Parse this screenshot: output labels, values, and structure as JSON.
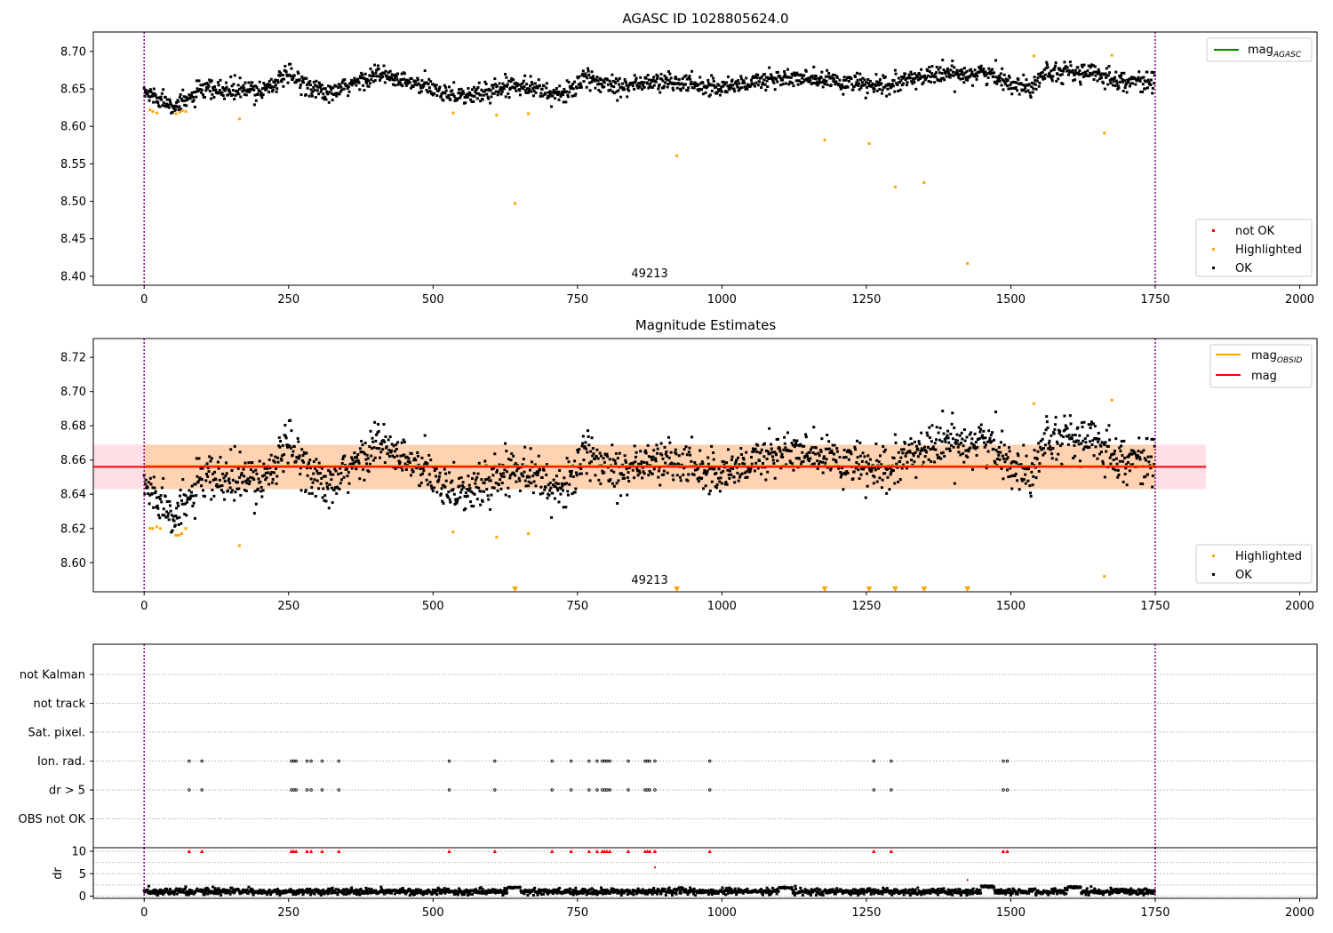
{
  "chart_data": [
    {
      "type": "scatter",
      "title": "AGASC ID 1028805624.0",
      "xlim": [
        -88,
        2030
      ],
      "ylim": [
        8.388,
        8.726
      ],
      "x_ticks": [
        0,
        250,
        500,
        750,
        1000,
        1250,
        1500,
        1750,
        2000
      ],
      "y_ticks": [
        8.4,
        8.45,
        8.5,
        8.55,
        8.6,
        8.65,
        8.7
      ],
      "x_tick_labels": [
        "0",
        "250",
        "500",
        "750",
        "1000",
        "1250",
        "1500",
        "1750",
        "2000"
      ],
      "y_tick_labels": [
        "8.40",
        "8.45",
        "8.50",
        "8.55",
        "8.60",
        "8.65",
        "8.70"
      ],
      "obsid_label": "49213",
      "obsid_x": 875,
      "obs_bounds": [
        0,
        1750
      ],
      "legend_lines": [
        {
          "label": "mag",
          "sub": "AGASC",
          "color": "#008000"
        }
      ],
      "legend_points": [
        {
          "label": "not OK",
          "color": "#ff0000"
        },
        {
          "label": "Highlighted",
          "color": "#ffa500"
        },
        {
          "label": "OK",
          "color": "#000000"
        }
      ],
      "ok_series": {
        "color": "#000000",
        "count": 1750,
        "noise": 0.0065,
        "trend_points": [
          [
            0,
            8.645
          ],
          [
            60,
            8.628
          ],
          [
            100,
            8.648
          ],
          [
            200,
            8.648
          ],
          [
            250,
            8.668
          ],
          [
            320,
            8.642
          ],
          [
            400,
            8.67
          ],
          [
            500,
            8.65
          ],
          [
            560,
            8.64
          ],
          [
            650,
            8.658
          ],
          [
            720,
            8.64
          ],
          [
            760,
            8.662
          ],
          [
            830,
            8.655
          ],
          [
            900,
            8.66
          ],
          [
            1000,
            8.652
          ],
          [
            1100,
            8.665
          ],
          [
            1200,
            8.66
          ],
          [
            1280,
            8.652
          ],
          [
            1350,
            8.668
          ],
          [
            1450,
            8.672
          ],
          [
            1480,
            8.665
          ],
          [
            1530,
            8.65
          ],
          [
            1560,
            8.675
          ],
          [
            1650,
            8.67
          ],
          [
            1700,
            8.66
          ],
          [
            1750,
            8.66
          ]
        ]
      },
      "highlighted": {
        "color": "#ffa500",
        "points": [
          [
            10,
            8.622
          ],
          [
            15,
            8.62
          ],
          [
            22,
            8.618
          ],
          [
            55,
            8.617
          ],
          [
            62,
            8.619
          ],
          [
            66,
            8.621
          ],
          [
            72,
            8.62
          ],
          [
            165,
            8.61
          ],
          [
            535,
            8.618
          ],
          [
            610,
            8.615
          ],
          [
            642,
            8.497
          ],
          [
            665,
            8.617
          ],
          [
            922,
            8.561
          ],
          [
            1178,
            8.582
          ],
          [
            1255,
            8.577
          ],
          [
            1300,
            8.519
          ],
          [
            1350,
            8.525
          ],
          [
            1425,
            8.417
          ],
          [
            1540,
            8.694
          ],
          [
            1662,
            8.591
          ],
          [
            1675,
            8.695
          ]
        ]
      }
    },
    {
      "type": "scatter",
      "title": "Magnitude Estimates",
      "xlim": [
        -88,
        2030
      ],
      "ylim": [
        8.583,
        8.731
      ],
      "x_ticks": [
        0,
        250,
        500,
        750,
        1000,
        1250,
        1500,
        1750,
        2000
      ],
      "y_ticks": [
        8.6,
        8.62,
        8.64,
        8.66,
        8.68,
        8.7,
        8.72
      ],
      "x_tick_labels": [
        "0",
        "250",
        "500",
        "750",
        "1000",
        "1250",
        "1500",
        "1750",
        "2000"
      ],
      "y_tick_labels": [
        "8.60",
        "8.62",
        "8.64",
        "8.66",
        "8.68",
        "8.70",
        "8.72"
      ],
      "obsid_label": "49213",
      "obsid_x": 875,
      "obs_bounds": [
        0,
        1750
      ],
      "mean_mag": 8.656,
      "mag_band": [
        8.643,
        8.669
      ],
      "mag_band_xlim": [
        -88,
        1838
      ],
      "obsid_mean": 8.656,
      "obsid_band_xlim": [
        0,
        1750
      ],
      "legend_lines": [
        {
          "label": "mag",
          "sub": "OBSID",
          "color": "#ffa500"
        },
        {
          "label": "mag",
          "sub": "",
          "color": "#ff0000"
        }
      ],
      "legend_points": [
        {
          "label": "Highlighted",
          "color": "#ffa500"
        },
        {
          "label": "OK",
          "color": "#000000"
        }
      ],
      "ok_series": {
        "color": "#000000",
        "count": 1750,
        "noise": 0.0065,
        "trend_points": [
          [
            0,
            8.645
          ],
          [
            60,
            8.628
          ],
          [
            100,
            8.648
          ],
          [
            200,
            8.648
          ],
          [
            250,
            8.668
          ],
          [
            320,
            8.642
          ],
          [
            400,
            8.67
          ],
          [
            500,
            8.65
          ],
          [
            560,
            8.64
          ],
          [
            650,
            8.658
          ],
          [
            720,
            8.64
          ],
          [
            760,
            8.662
          ],
          [
            830,
            8.655
          ],
          [
            900,
            8.66
          ],
          [
            1000,
            8.652
          ],
          [
            1100,
            8.665
          ],
          [
            1200,
            8.66
          ],
          [
            1280,
            8.652
          ],
          [
            1350,
            8.668
          ],
          [
            1450,
            8.672
          ],
          [
            1480,
            8.665
          ],
          [
            1530,
            8.65
          ],
          [
            1560,
            8.675
          ],
          [
            1650,
            8.67
          ],
          [
            1700,
            8.66
          ],
          [
            1750,
            8.66
          ]
        ]
      },
      "highlighted": {
        "color": "#ffa500",
        "points": [
          [
            10,
            8.62
          ],
          [
            15,
            8.62
          ],
          [
            22,
            8.621
          ],
          [
            28,
            8.62
          ],
          [
            55,
            8.616
          ],
          [
            60,
            8.616
          ],
          [
            65,
            8.617
          ],
          [
            72,
            8.62
          ],
          [
            165,
            8.61
          ],
          [
            535,
            8.618
          ],
          [
            610,
            8.615
          ],
          [
            665,
            8.617
          ],
          [
            1540,
            8.693
          ],
          [
            1662,
            8.592
          ],
          [
            1675,
            8.695
          ]
        ]
      },
      "below_range_markers": {
        "color": "#ffa500",
        "x": [
          642,
          922,
          1178,
          1255,
          1300,
          1350,
          1425
        ]
      }
    },
    {
      "type": "scatter",
      "title": "",
      "xlim": [
        -88,
        2030
      ],
      "x_ticks": [
        0,
        250,
        500,
        750,
        1000,
        1250,
        1500,
        1750,
        2000
      ],
      "x_tick_labels": [
        "0",
        "250",
        "500",
        "750",
        "1000",
        "1250",
        "1500",
        "1750",
        "2000"
      ],
      "obs_bounds": [
        0,
        1750
      ],
      "flag_rows": [
        "not Kalman",
        "not track",
        "Sat. pixel.",
        "Ion. rad.",
        "dr > 5",
        "OBS not OK"
      ],
      "flag_points": {
        "Ion. rad.": [
          78,
          100,
          255,
          259,
          263,
          282,
          289,
          308,
          337,
          528,
          607,
          706,
          739,
          770,
          784,
          793,
          797,
          801,
          806,
          838,
          867,
          871,
          875,
          884,
          979,
          1263,
          1293,
          1487,
          1494
        ],
        "dr > 5": [
          78,
          100,
          255,
          259,
          263,
          282,
          289,
          308,
          337,
          528,
          607,
          706,
          739,
          770,
          784,
          793,
          797,
          801,
          806,
          838,
          867,
          871,
          875,
          884,
          979,
          1263,
          1293,
          1487,
          1494
        ]
      }
    },
    {
      "type": "scatter",
      "title": "",
      "ylabel": "dr",
      "xlim": [
        -88,
        2030
      ],
      "ylim": [
        -0.5,
        10.8
      ],
      "x_ticks": [
        0,
        250,
        500,
        750,
        1000,
        1250,
        1500,
        1750,
        2000
      ],
      "y_ticks": [
        0,
        5,
        10
      ],
      "x_tick_labels": [
        "0",
        "250",
        "500",
        "750",
        "1000",
        "1250",
        "1500",
        "1750",
        "2000"
      ],
      "y_tick_labels": [
        "0",
        "5",
        "10"
      ],
      "obs_bounds": [
        0,
        1750
      ],
      "dr_series": {
        "color": "#000000",
        "count": 1750,
        "base": 1.0,
        "noise": 0.35
      },
      "capped": {
        "color": "#ff0000",
        "value": 10,
        "x": [
          78,
          100,
          255,
          259,
          263,
          282,
          289,
          308,
          337,
          528,
          607,
          706,
          739,
          770,
          784,
          793,
          797,
          801,
          806,
          838,
          867,
          871,
          875,
          884,
          979,
          1263,
          1293,
          1487,
          1494
        ]
      },
      "outliers": {
        "color": "#ff0000",
        "points": [
          [
            884,
            6.4
          ],
          [
            1425,
            3.6
          ]
        ]
      },
      "bumps": [
        [
          640,
          1.9
        ],
        [
          1110,
          1.9
        ],
        [
          1460,
          2.1
        ],
        [
          1610,
          2.0
        ]
      ]
    }
  ]
}
